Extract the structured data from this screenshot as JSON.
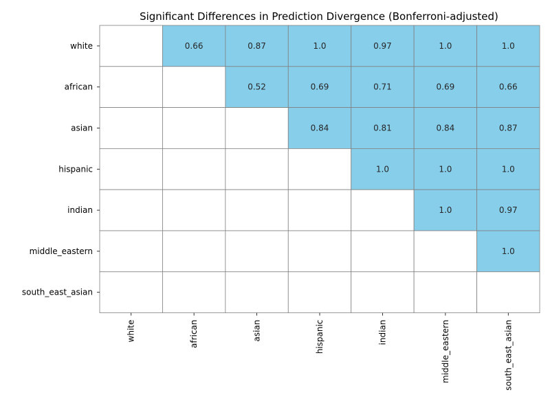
{
  "chart_data": {
    "type": "heatmap",
    "title": "Significant Differences in Prediction Divergence (Bonferroni-adjusted)",
    "xlabel": "",
    "ylabel": "",
    "rows": [
      "white",
      "african",
      "asian",
      "hispanic",
      "indian",
      "middle_eastern",
      "south_east_asian"
    ],
    "columns": [
      "white",
      "african",
      "asian",
      "hispanic",
      "indian",
      "middle_eastern",
      "south_east_asian"
    ],
    "values": [
      [
        null,
        "0.66",
        "0.87",
        "1.0",
        "0.97",
        "1.0",
        "1.0"
      ],
      [
        null,
        null,
        "0.52",
        "0.69",
        "0.71",
        "0.69",
        "0.66"
      ],
      [
        null,
        null,
        null,
        "0.84",
        "0.81",
        "0.84",
        "0.87"
      ],
      [
        null,
        null,
        null,
        null,
        "1.0",
        "1.0",
        "1.0"
      ],
      [
        null,
        null,
        null,
        null,
        null,
        "1.0",
        "0.97"
      ],
      [
        null,
        null,
        null,
        null,
        null,
        null,
        "1.0"
      ],
      [
        null,
        null,
        null,
        null,
        null,
        null,
        null
      ]
    ],
    "significant_color": "#87ceeb",
    "empty_color": "#ffffff",
    "grid_color": "#808080",
    "grid": true,
    "colorbar": false
  }
}
